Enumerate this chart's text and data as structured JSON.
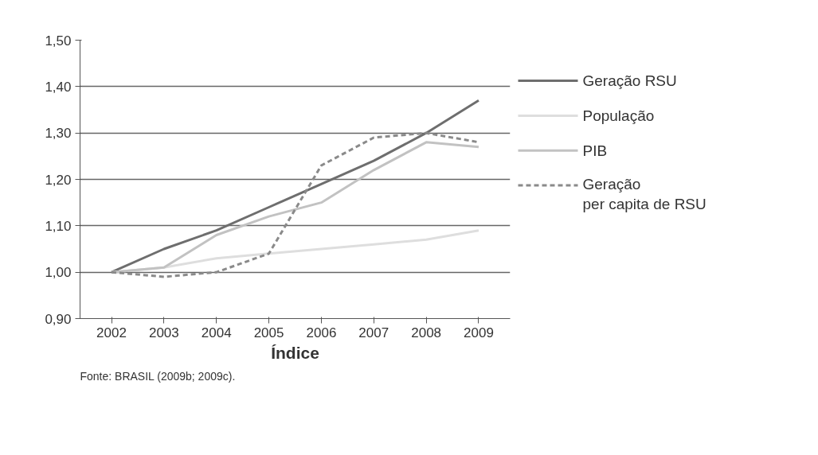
{
  "chart_data": {
    "type": "line",
    "xlabel": "Índice",
    "categories": [
      "2002",
      "2003",
      "2004",
      "2005",
      "2006",
      "2007",
      "2008",
      "2009"
    ],
    "ylim": [
      0.9,
      1.5
    ],
    "yticks": [
      {
        "value": 0.9,
        "label": "0,90"
      },
      {
        "value": 1.0,
        "label": "1,00"
      },
      {
        "value": 1.1,
        "label": "1,10"
      },
      {
        "value": 1.2,
        "label": "1,20"
      },
      {
        "value": 1.3,
        "label": "1,30"
      },
      {
        "value": 1.4,
        "label": "1,40"
      },
      {
        "value": 1.5,
        "label": "1,50"
      }
    ],
    "grid": "y",
    "legend": "right",
    "marker": "none",
    "series": [
      {
        "name": "Geração RSU",
        "color": "#6e6e6e",
        "line_style": "solid",
        "values": [
          1.0,
          1.05,
          1.09,
          1.14,
          1.19,
          1.24,
          1.3,
          1.37
        ]
      },
      {
        "name": "População",
        "color": "#dedede",
        "line_style": "solid",
        "values": [
          1.0,
          1.01,
          1.03,
          1.04,
          1.05,
          1.06,
          1.07,
          1.09
        ]
      },
      {
        "name": "PIB",
        "color": "#c2c2c2",
        "line_style": "solid",
        "values": [
          1.0,
          1.01,
          1.08,
          1.12,
          1.15,
          1.22,
          1.28,
          1.27
        ]
      },
      {
        "name": "Geração\nper capita de RSU",
        "color": "#8a8a8a",
        "line_style": "dashed",
        "values": [
          1.0,
          0.99,
          1.0,
          1.04,
          1.23,
          1.29,
          1.3,
          1.28
        ]
      }
    ],
    "annotations": [
      "Fonte: BRASIL (2009b; 2009c)."
    ]
  }
}
